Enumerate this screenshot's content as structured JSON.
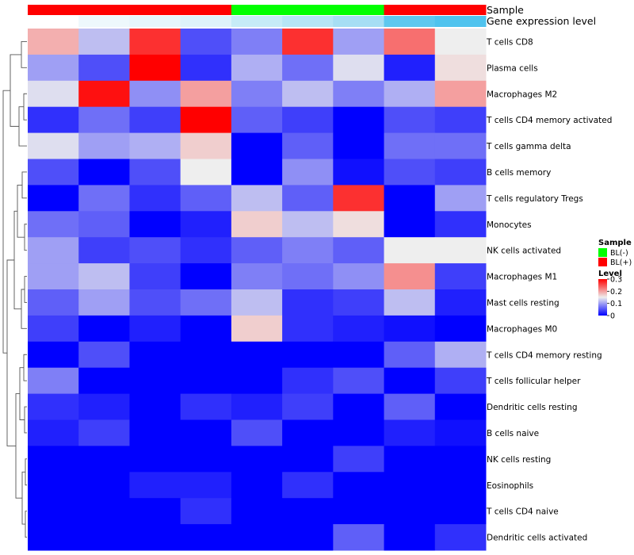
{
  "chart_data": {
    "type": "heatmap",
    "title": "",
    "annotations": {
      "sample_label": "Sample",
      "expression_label": "Gene expression level",
      "sample_groups": [
        "BL(+)",
        "BL(+)",
        "BL(+)",
        "BL(+)",
        "BL(-)",
        "BL(-)",
        "BL(-)",
        "BL(+)",
        "BL(+)"
      ],
      "expression_colors": [
        "#ffffff",
        "#eef8fc",
        "#e6f5fb",
        "#def2fa",
        "#c6ebf7",
        "#b6e5f6",
        "#a6def4",
        "#5ec8ef",
        "#4fc3ee"
      ]
    },
    "rows": [
      "T cells CD8",
      "Plasma cells",
      "Macrophages M2",
      "T cells CD4 memory activated",
      "T cells gamma delta",
      "B cells memory",
      "T cells regulatory  Tregs",
      "Monocytes",
      "NK cells activated",
      "Macrophages M1",
      "Mast cells resting",
      "Macrophages M0",
      "T cells CD4 memory resting",
      "T cells follicular helper",
      "Dendritic cells resting",
      "B cells naive",
      "NK cells resting",
      "Eosinophils",
      "T cells CD4 naive",
      "Dendritic cells activated"
    ],
    "values": [
      [
        0.19,
        0.12,
        0.27,
        0.05,
        0.08,
        0.27,
        0.1,
        0.23,
        0.15
      ],
      [
        0.1,
        0.05,
        0.3,
        0.03,
        0.11,
        0.07,
        0.14,
        0.02,
        0.16
      ],
      [
        0.14,
        0.29,
        0.09,
        0.2,
        0.08,
        0.12,
        0.08,
        0.11,
        0.2
      ],
      [
        0.03,
        0.07,
        0.04,
        0.3,
        0.06,
        0.04,
        0.0,
        0.05,
        0.04
      ],
      [
        0.14,
        0.1,
        0.11,
        0.17,
        0.0,
        0.06,
        0.0,
        0.07,
        0.07
      ],
      [
        0.05,
        0.0,
        0.05,
        0.15,
        0.0,
        0.09,
        0.01,
        0.05,
        0.04
      ],
      [
        0.0,
        0.07,
        0.03,
        0.06,
        0.12,
        0.06,
        0.27,
        0.0,
        0.1
      ],
      [
        0.07,
        0.06,
        0.0,
        0.02,
        0.17,
        0.12,
        0.16,
        0.0,
        0.03
      ],
      [
        0.1,
        0.04,
        0.05,
        0.03,
        0.06,
        0.08,
        0.06,
        0.15,
        0.15
      ],
      [
        0.1,
        0.12,
        0.04,
        0.0,
        0.08,
        0.07,
        0.09,
        0.21,
        0.04
      ],
      [
        0.06,
        0.1,
        0.05,
        0.07,
        0.12,
        0.03,
        0.04,
        0.12,
        0.02
      ],
      [
        0.04,
        0.0,
        0.02,
        0.0,
        0.17,
        0.03,
        0.02,
        0.01,
        0.0
      ],
      [
        0.0,
        0.05,
        0.0,
        0.0,
        0.0,
        0.0,
        0.0,
        0.06,
        0.11
      ],
      [
        0.08,
        0.0,
        0.0,
        0.0,
        0.0,
        0.03,
        0.05,
        0.0,
        0.04
      ],
      [
        0.03,
        0.02,
        0.0,
        0.03,
        0.02,
        0.04,
        0.0,
        0.06,
        0.0
      ],
      [
        0.02,
        0.04,
        0.0,
        0.0,
        0.05,
        0.0,
        0.0,
        0.02,
        0.01
      ],
      [
        0.0,
        0.0,
        0.0,
        0.0,
        0.0,
        0.0,
        0.04,
        0.0,
        0.0
      ],
      [
        0.0,
        0.0,
        0.02,
        0.02,
        0.0,
        0.03,
        0.0,
        0.0,
        0.0
      ],
      [
        0.0,
        0.0,
        0.0,
        0.03,
        0.0,
        0.0,
        0.0,
        0.0,
        0.0
      ],
      [
        0.0,
        0.0,
        0.0,
        0.0,
        0.0,
        0.0,
        0.06,
        0.0,
        0.03
      ]
    ],
    "color_scale": {
      "min": 0,
      "mid": 0.15,
      "max": 0.3,
      "low": "#0000ff",
      "midcolor": "#eeeeee",
      "high": "#ff0000"
    },
    "legend": {
      "placement": "right",
      "sample_title": "Sample",
      "sample_entries": [
        {
          "label": "BL(-)",
          "color": "#00ff00"
        },
        {
          "label": "BL(+)",
          "color": "#ff0000"
        }
      ],
      "level_title": "Level",
      "level_ticks": [
        "0.3",
        "0.2",
        "0.1",
        "0"
      ],
      "level_tick_values": [
        0.3,
        0.2,
        0.1,
        0
      ]
    },
    "sample_colors": {
      "BL(+)": "#ff0000",
      "BL(-)": "#00ff00"
    },
    "row_dendrogram": true
  }
}
